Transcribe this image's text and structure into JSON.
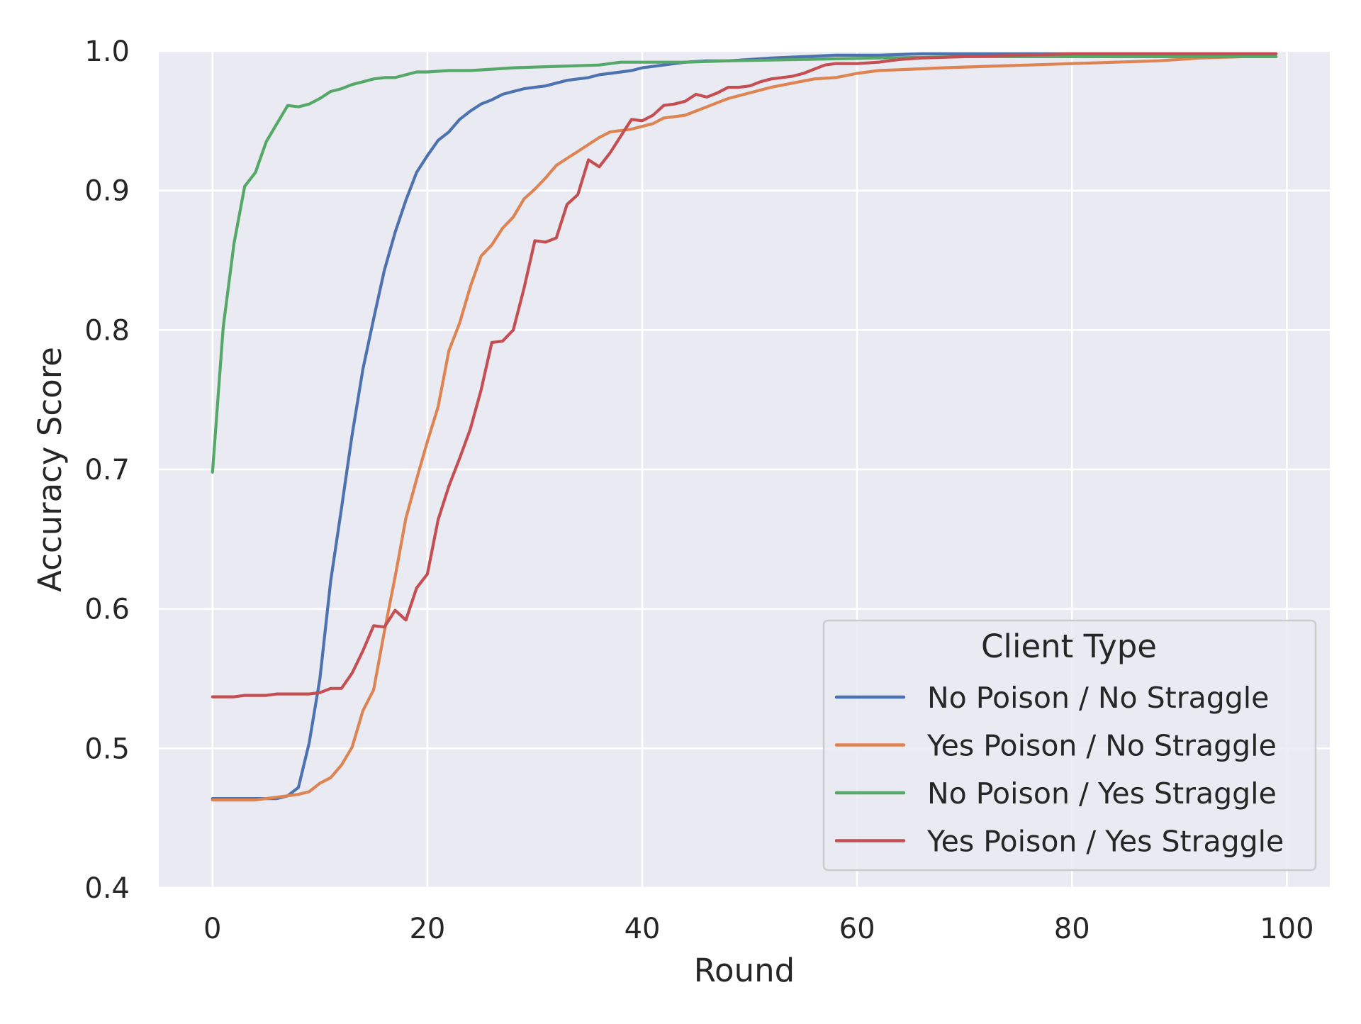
{
  "chart_data": {
    "type": "line",
    "title": "",
    "xlabel": "Round",
    "ylabel": "Accuracy Score",
    "xlim": [
      -5,
      104
    ],
    "ylim": [
      0.4,
      1.0
    ],
    "xticks": [
      0,
      20,
      40,
      60,
      80,
      100
    ],
    "xtick_labels": [
      "0",
      "20",
      "40",
      "60",
      "80",
      "100"
    ],
    "yticks": [
      0.4,
      0.5,
      0.6,
      0.7,
      0.8,
      0.9,
      1.0
    ],
    "ytick_labels": [
      "0.4",
      "0.5",
      "0.6",
      "0.7",
      "0.8",
      "0.9",
      "1.0"
    ],
    "grid": true,
    "background": "#eaeaf2",
    "legend": {
      "title": "Client Type",
      "placement": "lower-right"
    },
    "series": [
      {
        "name": "No Poison / No Straggle",
        "color": "#4c72b0",
        "points": [
          [
            0,
            0.464
          ],
          [
            2,
            0.464
          ],
          [
            4,
            0.464
          ],
          [
            6,
            0.464
          ],
          [
            7,
            0.466
          ],
          [
            8,
            0.472
          ],
          [
            9,
            0.504
          ],
          [
            10,
            0.55
          ],
          [
            11,
            0.62
          ],
          [
            12,
            0.672
          ],
          [
            13,
            0.725
          ],
          [
            14,
            0.772
          ],
          [
            15,
            0.808
          ],
          [
            16,
            0.843
          ],
          [
            17,
            0.87
          ],
          [
            18,
            0.893
          ],
          [
            19,
            0.913
          ],
          [
            20,
            0.925
          ],
          [
            21,
            0.936
          ],
          [
            22,
            0.942
          ],
          [
            23,
            0.951
          ],
          [
            24,
            0.957
          ],
          [
            25,
            0.962
          ],
          [
            26,
            0.965
          ],
          [
            27,
            0.969
          ],
          [
            28,
            0.971
          ],
          [
            29,
            0.973
          ],
          [
            30,
            0.974
          ],
          [
            31,
            0.975
          ],
          [
            32,
            0.977
          ],
          [
            33,
            0.979
          ],
          [
            34,
            0.98
          ],
          [
            35,
            0.981
          ],
          [
            36,
            0.983
          ],
          [
            37,
            0.984
          ],
          [
            38,
            0.985
          ],
          [
            39,
            0.986
          ],
          [
            40,
            0.988
          ],
          [
            42,
            0.99
          ],
          [
            44,
            0.992
          ],
          [
            46,
            0.993
          ],
          [
            48,
            0.993
          ],
          [
            50,
            0.994
          ],
          [
            52,
            0.995
          ],
          [
            55,
            0.996
          ],
          [
            58,
            0.997
          ],
          [
            62,
            0.997
          ],
          [
            66,
            0.998
          ],
          [
            99,
            0.998
          ]
        ]
      },
      {
        "name": "Yes Poison / No Straggle",
        "color": "#dd8452",
        "points": [
          [
            0,
            0.463
          ],
          [
            2,
            0.463
          ],
          [
            4,
            0.463
          ],
          [
            5,
            0.464
          ],
          [
            6,
            0.465
          ],
          [
            7,
            0.466
          ],
          [
            8,
            0.467
          ],
          [
            9,
            0.469
          ],
          [
            10,
            0.475
          ],
          [
            11,
            0.479
          ],
          [
            12,
            0.488
          ],
          [
            13,
            0.501
          ],
          [
            14,
            0.527
          ],
          [
            15,
            0.542
          ],
          [
            16,
            0.584
          ],
          [
            17,
            0.623
          ],
          [
            18,
            0.665
          ],
          [
            19,
            0.693
          ],
          [
            20,
            0.72
          ],
          [
            21,
            0.745
          ],
          [
            22,
            0.785
          ],
          [
            23,
            0.805
          ],
          [
            24,
            0.831
          ],
          [
            25,
            0.853
          ],
          [
            26,
            0.861
          ],
          [
            27,
            0.873
          ],
          [
            28,
            0.881
          ],
          [
            29,
            0.894
          ],
          [
            30,
            0.901
          ],
          [
            31,
            0.909
          ],
          [
            32,
            0.918
          ],
          [
            33,
            0.923
          ],
          [
            34,
            0.928
          ],
          [
            35,
            0.933
          ],
          [
            36,
            0.938
          ],
          [
            37,
            0.942
          ],
          [
            38,
            0.943
          ],
          [
            39,
            0.944
          ],
          [
            40,
            0.946
          ],
          [
            41,
            0.948
          ],
          [
            42,
            0.952
          ],
          [
            44,
            0.954
          ],
          [
            46,
            0.96
          ],
          [
            48,
            0.966
          ],
          [
            50,
            0.97
          ],
          [
            52,
            0.974
          ],
          [
            54,
            0.977
          ],
          [
            56,
            0.98
          ],
          [
            58,
            0.981
          ],
          [
            60,
            0.984
          ],
          [
            62,
            0.986
          ],
          [
            65,
            0.987
          ],
          [
            68,
            0.988
          ],
          [
            72,
            0.989
          ],
          [
            76,
            0.99
          ],
          [
            80,
            0.991
          ],
          [
            84,
            0.992
          ],
          [
            88,
            0.993
          ],
          [
            92,
            0.995
          ],
          [
            96,
            0.996
          ],
          [
            99,
            0.996
          ]
        ]
      },
      {
        "name": "No Poison / Yes Straggle",
        "color": "#55a868",
        "points": [
          [
            0,
            0.698
          ],
          [
            1,
            0.802
          ],
          [
            2,
            0.862
          ],
          [
            3,
            0.903
          ],
          [
            4,
            0.913
          ],
          [
            5,
            0.935
          ],
          [
            6,
            0.948
          ],
          [
            7,
            0.961
          ],
          [
            8,
            0.96
          ],
          [
            9,
            0.962
          ],
          [
            10,
            0.966
          ],
          [
            11,
            0.971
          ],
          [
            12,
            0.973
          ],
          [
            13,
            0.976
          ],
          [
            14,
            0.978
          ],
          [
            15,
            0.98
          ],
          [
            16,
            0.981
          ],
          [
            17,
            0.981
          ],
          [
            18,
            0.983
          ],
          [
            19,
            0.985
          ],
          [
            20,
            0.985
          ],
          [
            22,
            0.986
          ],
          [
            24,
            0.986
          ],
          [
            26,
            0.987
          ],
          [
            28,
            0.988
          ],
          [
            32,
            0.989
          ],
          [
            36,
            0.99
          ],
          [
            38,
            0.992
          ],
          [
            44,
            0.992
          ],
          [
            48,
            0.993
          ],
          [
            55,
            0.994
          ],
          [
            62,
            0.995
          ],
          [
            70,
            0.996
          ],
          [
            85,
            0.996
          ],
          [
            99,
            0.996
          ]
        ]
      },
      {
        "name": "Yes Poison / Yes Straggle",
        "color": "#c44e52",
        "points": [
          [
            0,
            0.537
          ],
          [
            1,
            0.537
          ],
          [
            2,
            0.537
          ],
          [
            3,
            0.538
          ],
          [
            4,
            0.538
          ],
          [
            5,
            0.538
          ],
          [
            6,
            0.539
          ],
          [
            7,
            0.539
          ],
          [
            8,
            0.539
          ],
          [
            9,
            0.539
          ],
          [
            10,
            0.54
          ],
          [
            11,
            0.543
          ],
          [
            12,
            0.543
          ],
          [
            13,
            0.554
          ],
          [
            14,
            0.57
          ],
          [
            15,
            0.588
          ],
          [
            16,
            0.587
          ],
          [
            17,
            0.599
          ],
          [
            18,
            0.592
          ],
          [
            19,
            0.615
          ],
          [
            20,
            0.625
          ],
          [
            21,
            0.664
          ],
          [
            22,
            0.688
          ],
          [
            23,
            0.708
          ],
          [
            24,
            0.729
          ],
          [
            25,
            0.757
          ],
          [
            26,
            0.791
          ],
          [
            27,
            0.792
          ],
          [
            28,
            0.8
          ],
          [
            29,
            0.83
          ],
          [
            30,
            0.864
          ],
          [
            31,
            0.863
          ],
          [
            32,
            0.866
          ],
          [
            33,
            0.89
          ],
          [
            34,
            0.897
          ],
          [
            35,
            0.922
          ],
          [
            36,
            0.917
          ],
          [
            37,
            0.927
          ],
          [
            38,
            0.939
          ],
          [
            39,
            0.951
          ],
          [
            40,
            0.95
          ],
          [
            41,
            0.954
          ],
          [
            42,
            0.961
          ],
          [
            43,
            0.962
          ],
          [
            44,
            0.964
          ],
          [
            45,
            0.969
          ],
          [
            46,
            0.967
          ],
          [
            47,
            0.97
          ],
          [
            48,
            0.974
          ],
          [
            49,
            0.974
          ],
          [
            50,
            0.975
          ],
          [
            51,
            0.978
          ],
          [
            52,
            0.98
          ],
          [
            53,
            0.981
          ],
          [
            54,
            0.982
          ],
          [
            55,
            0.984
          ],
          [
            56,
            0.987
          ],
          [
            57,
            0.99
          ],
          [
            58,
            0.991
          ],
          [
            60,
            0.991
          ],
          [
            62,
            0.992
          ],
          [
            64,
            0.994
          ],
          [
            66,
            0.995
          ],
          [
            70,
            0.996
          ],
          [
            75,
            0.997
          ],
          [
            80,
            0.998
          ],
          [
            99,
            0.998
          ]
        ]
      }
    ]
  }
}
